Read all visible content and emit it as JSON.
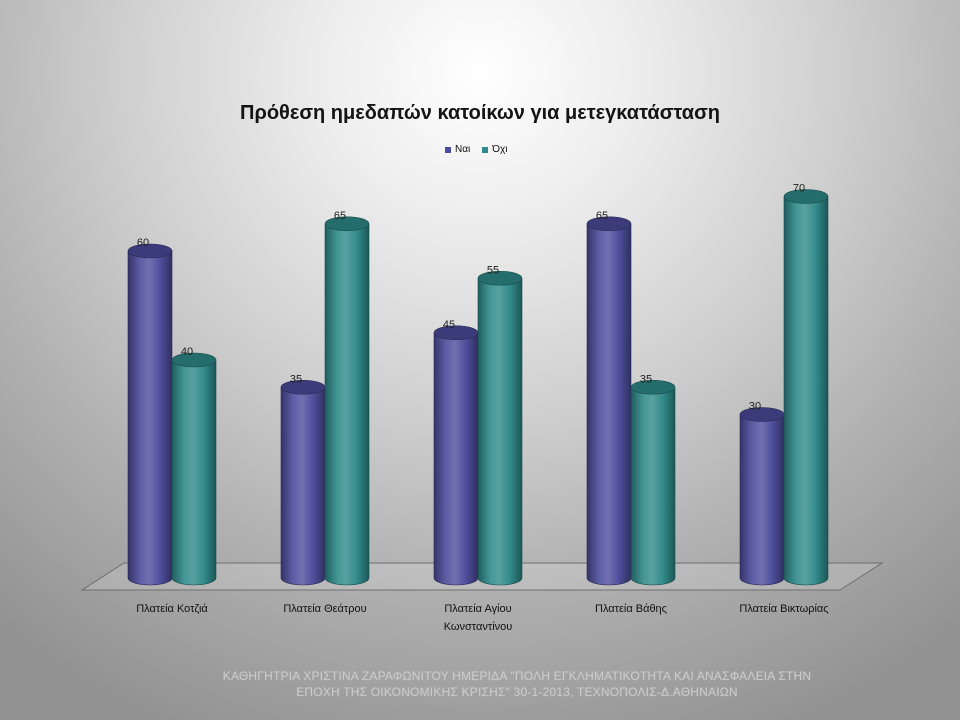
{
  "chart_data": {
    "type": "bar",
    "title": "Πρόθεση ημεδαπών κατοίκων για μετεγκατάσταση",
    "categories": [
      "Πλατεία Κοτζιά",
      "Πλατεία Θεάτρου",
      "Πλατεία Αγίου Κωνσταντίνου",
      "Πλατεία Βάθης",
      "Πλατεία Βικτωρίας"
    ],
    "series": [
      {
        "name": "Ναι",
        "color": "#4c4c9c",
        "values": [
          60,
          35,
          45,
          65,
          30
        ]
      },
      {
        "name": "Όχι",
        "color": "#2f8a8a",
        "values": [
          40,
          65,
          55,
          35,
          70
        ]
      }
    ],
    "ylim": [
      0,
      80
    ],
    "grid": false,
    "legend": "top",
    "data_labels": true
  },
  "footer": {
    "lines": [
      "ΚΑΘΗΓΗΤΡΙΑ ΧΡΙΣΤΙΝΑ ΖΑΡΑΦΩΝΙΤΟΥ ΗΜΕΡΙΔΑ \"ΠΟΛΗ ΕΓΚΛΗΜΑΤΙΚΟΤΗΤΑ ΚΑΙ ΑΝΑΣΦΑΛΕΙΑ ΣΤΗΝ",
      "ΕΠΟΧΗ ΤΗΣ ΟΙΚΟΝΟΜΙΚΗΣ ΚΡΙΣΗΣ\" 30-1-2013, ΤΕΧΝΟΠΟΛΙΣ-Δ.ΑΘΗΝΑΙΩΝ"
    ]
  }
}
